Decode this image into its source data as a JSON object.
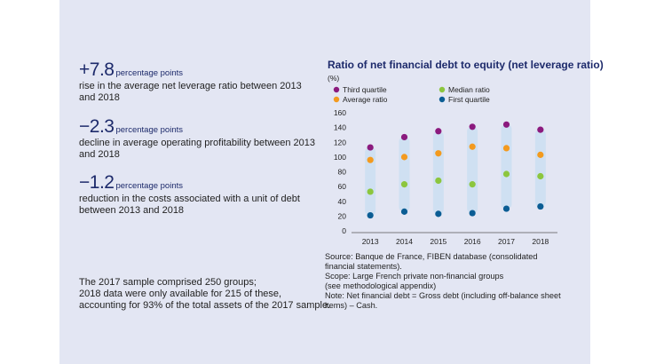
{
  "stats": [
    {
      "value": "+7.8",
      "unit": "percentage points",
      "description": "rise in the average net leverage ratio between 2013 and 2018"
    },
    {
      "value": "−2.3",
      "unit": "percentage points",
      "description": "decline in average operating profitability between 2013 and 2018"
    },
    {
      "value": "−1.2",
      "unit": "percentage points",
      "description": "reduction in the costs associated with a unit of debt between 2013 and 2018"
    }
  ],
  "sample_note": [
    "The 2017 sample comprised 250 groups;",
    "2018 data were only available for 215 of these,",
    "accounting for 93% of the total assets of the 2017 sample."
  ],
  "chart_notes": [
    "Source: Banque de France, FIBEN database (consolidated",
    "financial statements).",
    "Scope: Large French private non-financial groups",
    "(see methodological appendix)",
    "Note: Net financial debt = Gross debt (including off-balance sheet",
    "items) – Cash."
  ],
  "colors": {
    "third_quartile": "#8b1a7e",
    "average": "#f39a1e",
    "median": "#8cc63e",
    "first_quartile": "#0b5d94",
    "band": "#cfe0f2",
    "title": "#1d2a6b"
  },
  "chart_data": {
    "type": "scatter",
    "title": "Ratio of net financial debt to equity (net leverage ratio)",
    "ylabel": "(%)",
    "categories": [
      "2013",
      "2014",
      "2015",
      "2016",
      "2017",
      "2018"
    ],
    "ylim": [
      0,
      160
    ],
    "yticks": [
      0,
      20,
      40,
      60,
      80,
      100,
      120,
      140,
      160
    ],
    "legend": [
      {
        "key": "third_quartile",
        "label": "Third quartile"
      },
      {
        "key": "median",
        "label": "Median ratio"
      },
      {
        "key": "average",
        "label": "Average ratio"
      },
      {
        "key": "first_quartile",
        "label": "First quartile"
      }
    ],
    "series": [
      {
        "key": "third_quartile",
        "name": "Third quartile",
        "values": [
          113,
          127,
          135,
          141,
          144,
          137
        ]
      },
      {
        "key": "average",
        "name": "Average ratio",
        "values": [
          96,
          100,
          105,
          114,
          112,
          103
        ]
      },
      {
        "key": "median",
        "name": "Median ratio",
        "values": [
          53,
          63,
          68,
          63,
          77,
          74
        ]
      },
      {
        "key": "first_quartile",
        "name": "First quartile",
        "values": [
          21,
          26,
          23,
          24,
          30,
          33
        ]
      }
    ]
  }
}
